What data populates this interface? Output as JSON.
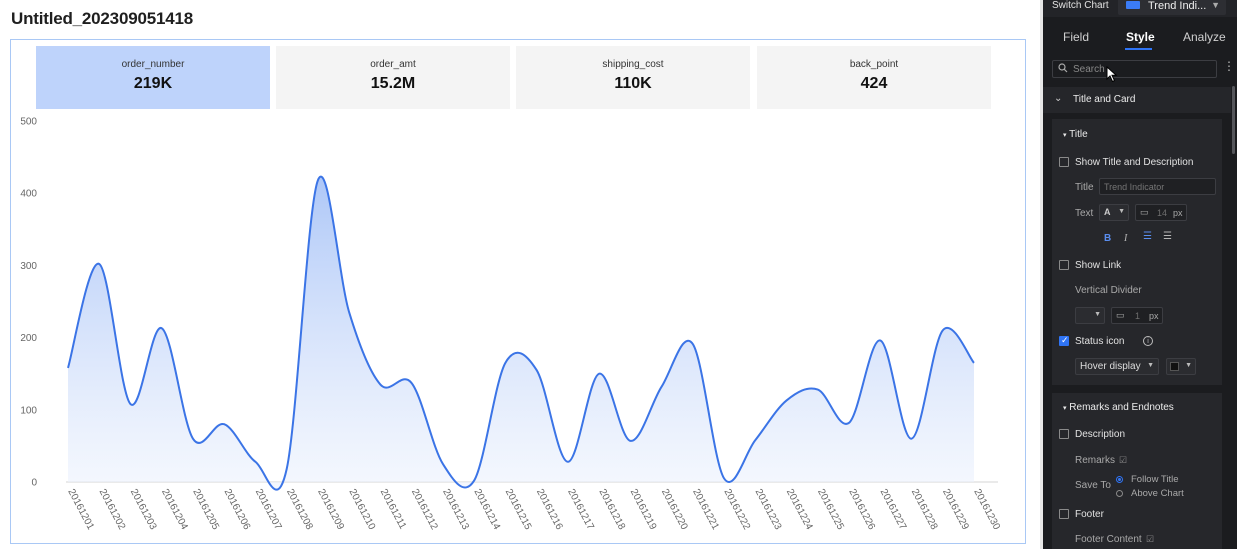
{
  "report": {
    "title": "Untitled_202309051418"
  },
  "kpis": [
    {
      "label": "order_number",
      "value": "219K",
      "active": true
    },
    {
      "label": "order_amt",
      "value": "15.2M",
      "active": false
    },
    {
      "label": "shipping_cost",
      "value": "110K",
      "active": false
    },
    {
      "label": "back_point",
      "value": "424",
      "active": false
    }
  ],
  "chart_data": {
    "type": "area",
    "title": "",
    "xlabel": "",
    "ylabel": "",
    "ylim": [
      0,
      500
    ],
    "yticks": [
      0,
      100,
      200,
      300,
      400,
      500
    ],
    "grid": false,
    "color": "#3b74e6",
    "x": [
      "20161201",
      "20161202",
      "20161203",
      "20161204",
      "20161205",
      "20161206",
      "20161207",
      "20161208",
      "20161209",
      "20161210",
      "20161211",
      "20161212",
      "20161213",
      "20161214",
      "20161215",
      "20161216",
      "20161217",
      "20161218",
      "20161219",
      "20161220",
      "20161221",
      "20161222",
      "20161223",
      "20161224",
      "20161225",
      "20161226",
      "20161227",
      "20161228",
      "20161229",
      "20161230"
    ],
    "series": [
      {
        "values": [
          158,
          302,
          108,
          213,
          60,
          80,
          28,
          18,
          418,
          235,
          135,
          137,
          25,
          2,
          165,
          155,
          28,
          150,
          57,
          132,
          191,
          5,
          58,
          113,
          128,
          82,
          196,
          60,
          210,
          165
        ]
      }
    ]
  },
  "panel": {
    "switch_chart_label": "Switch Chart",
    "chart_type_name": "Trend Indi...",
    "tabs": [
      "Field",
      "Style",
      "Analyze"
    ],
    "active_tab": "Style",
    "search_placeholder": "Search",
    "section_title_card": "Title and Card",
    "title_block": {
      "heading": "Title",
      "show_title_desc": "Show Title and Description",
      "title_label": "Title",
      "title_placeholder": "Trend Indicator",
      "text_label": "Text",
      "font_value": "A",
      "size_value": "14",
      "size_unit": "px",
      "show_link": "Show Link",
      "vertical_divider": "Vertical Divider",
      "divider_size": "1",
      "divider_unit": "px",
      "status_icon": "Status icon",
      "hover_display": "Hover display"
    },
    "remarks_block": {
      "heading": "Remarks and Endnotes",
      "description": "Description",
      "remarks": "Remarks",
      "save_to": "Save To",
      "follow_title": "Follow Title",
      "above_chart": "Above Chart",
      "footer": "Footer",
      "footer_content": "Footer Content"
    },
    "colors": {
      "accent": "#2f74f5",
      "panel_bg": "#1b1c1f"
    }
  }
}
